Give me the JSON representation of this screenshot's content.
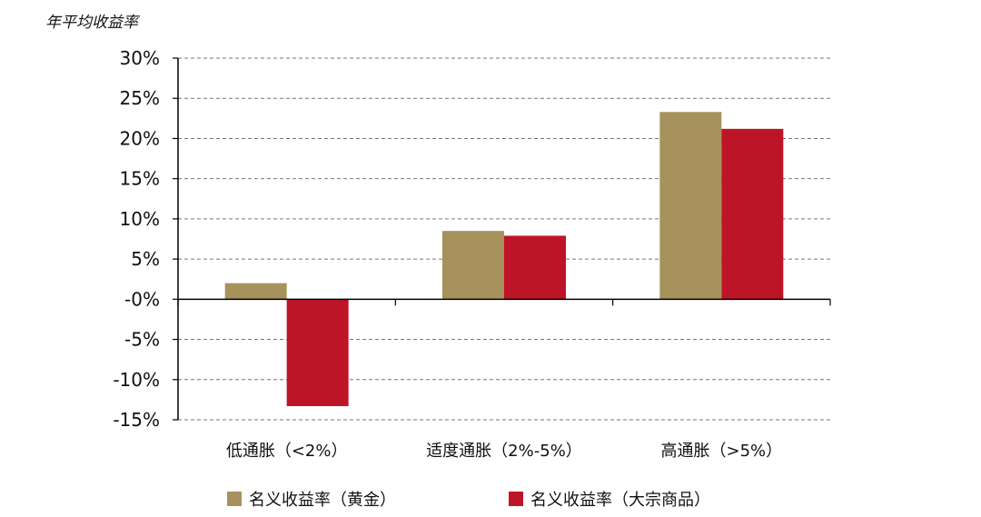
{
  "chart_data": {
    "type": "bar",
    "ylabel": "年平均收益率",
    "categories": [
      "低通胀（<2%）",
      "适度通胀（2%-5%）",
      "高通胀（>5%）"
    ],
    "series": [
      {
        "name": "名义收益率（黄金）",
        "color": "#A7915D",
        "values": [
          2.0,
          8.5,
          23.3
        ]
      },
      {
        "name": "名义收益率（大宗商品）",
        "color": "#BE1428",
        "values": [
          -13.3,
          7.9,
          21.2
        ]
      }
    ],
    "ylim": [
      -15,
      30
    ],
    "yticks": [
      30,
      25,
      20,
      15,
      10,
      5,
      0,
      -5,
      -10,
      -15
    ],
    "ytick_labels": [
      "30%",
      "25%",
      "20%",
      "15%",
      "10%",
      "5%",
      "-0%",
      "-5%",
      "-10%",
      "-15%"
    ],
    "grid": true,
    "legend_position": "bottom"
  }
}
